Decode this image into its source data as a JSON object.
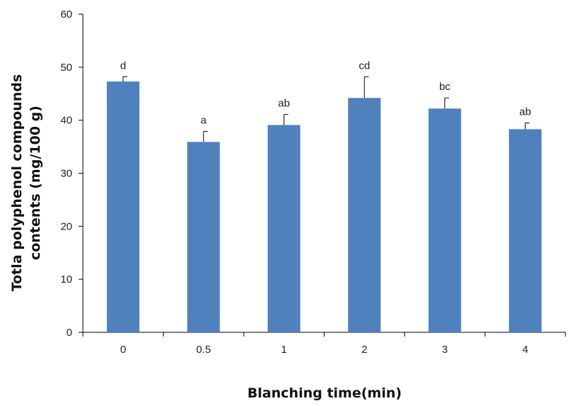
{
  "chart_data": {
    "type": "bar",
    "title": "",
    "xlabel": "Blanching time(min)",
    "ylabel_lines": [
      "Totla polyphenol compounds",
      "contents (mg/100 g)"
    ],
    "categories": [
      "0",
      "0.5",
      "1",
      "2",
      "3",
      "4"
    ],
    "values": [
      47.3,
      35.9,
      39.1,
      44.2,
      42.2,
      38.3
    ],
    "errors": [
      0.9,
      2.0,
      2.0,
      4.0,
      2.0,
      1.2
    ],
    "significance": [
      "d",
      "a",
      "ab",
      "cd",
      "bc",
      "ab"
    ],
    "yticks": [
      "0",
      "10",
      "20",
      "30",
      "40",
      "50",
      "60"
    ],
    "ylim": [
      0,
      60
    ],
    "grid": false,
    "legend": "none",
    "bar_color": "#4f81bd"
  }
}
